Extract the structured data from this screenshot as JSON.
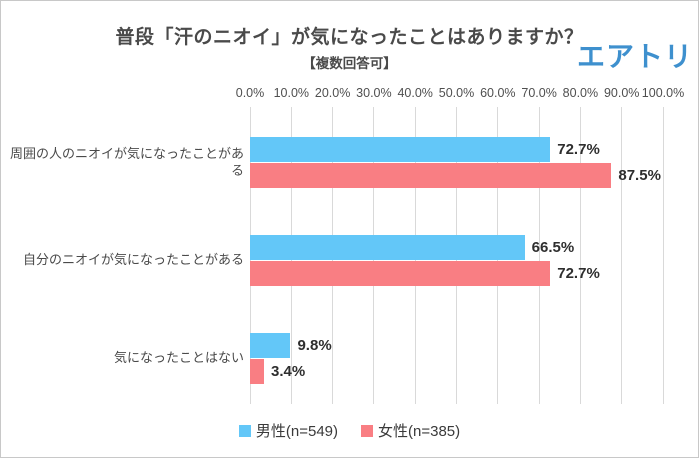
{
  "header": {
    "title": "普段「汗のニオイ」が気になったことはありますか？",
    "subtitle": "【複数回答可】",
    "logo_text": "エアトリ",
    "logo_color": "#3e90ce"
  },
  "chart_data": {
    "type": "bar",
    "orientation": "horizontal",
    "title": "普段「汗のニオイ」が気になったことはありますか？",
    "subtitle": "【複数回答可】",
    "categories": [
      "周囲の人のニオイが気になったことがある",
      "自分のニオイが気になったことがある",
      "気になったことはない"
    ],
    "series": [
      {
        "key": "male",
        "name": "男性(n=549)",
        "color": "#63c7f8",
        "values": [
          72.7,
          66.5,
          9.8
        ]
      },
      {
        "key": "female",
        "name": "女性(n=385)",
        "color": "#f97e83",
        "values": [
          87.5,
          72.7,
          3.4
        ]
      }
    ],
    "x_ticks": [
      "0.0%",
      "10.0%",
      "20.0%",
      "30.0%",
      "40.0%",
      "50.0%",
      "60.0%",
      "70.0%",
      "80.0%",
      "90.0%",
      "100.0%"
    ],
    "xlim": [
      0,
      100
    ],
    "value_suffix": "%",
    "grid": true,
    "legend_position": "bottom",
    "gridline_color": "#d9d9d9"
  }
}
